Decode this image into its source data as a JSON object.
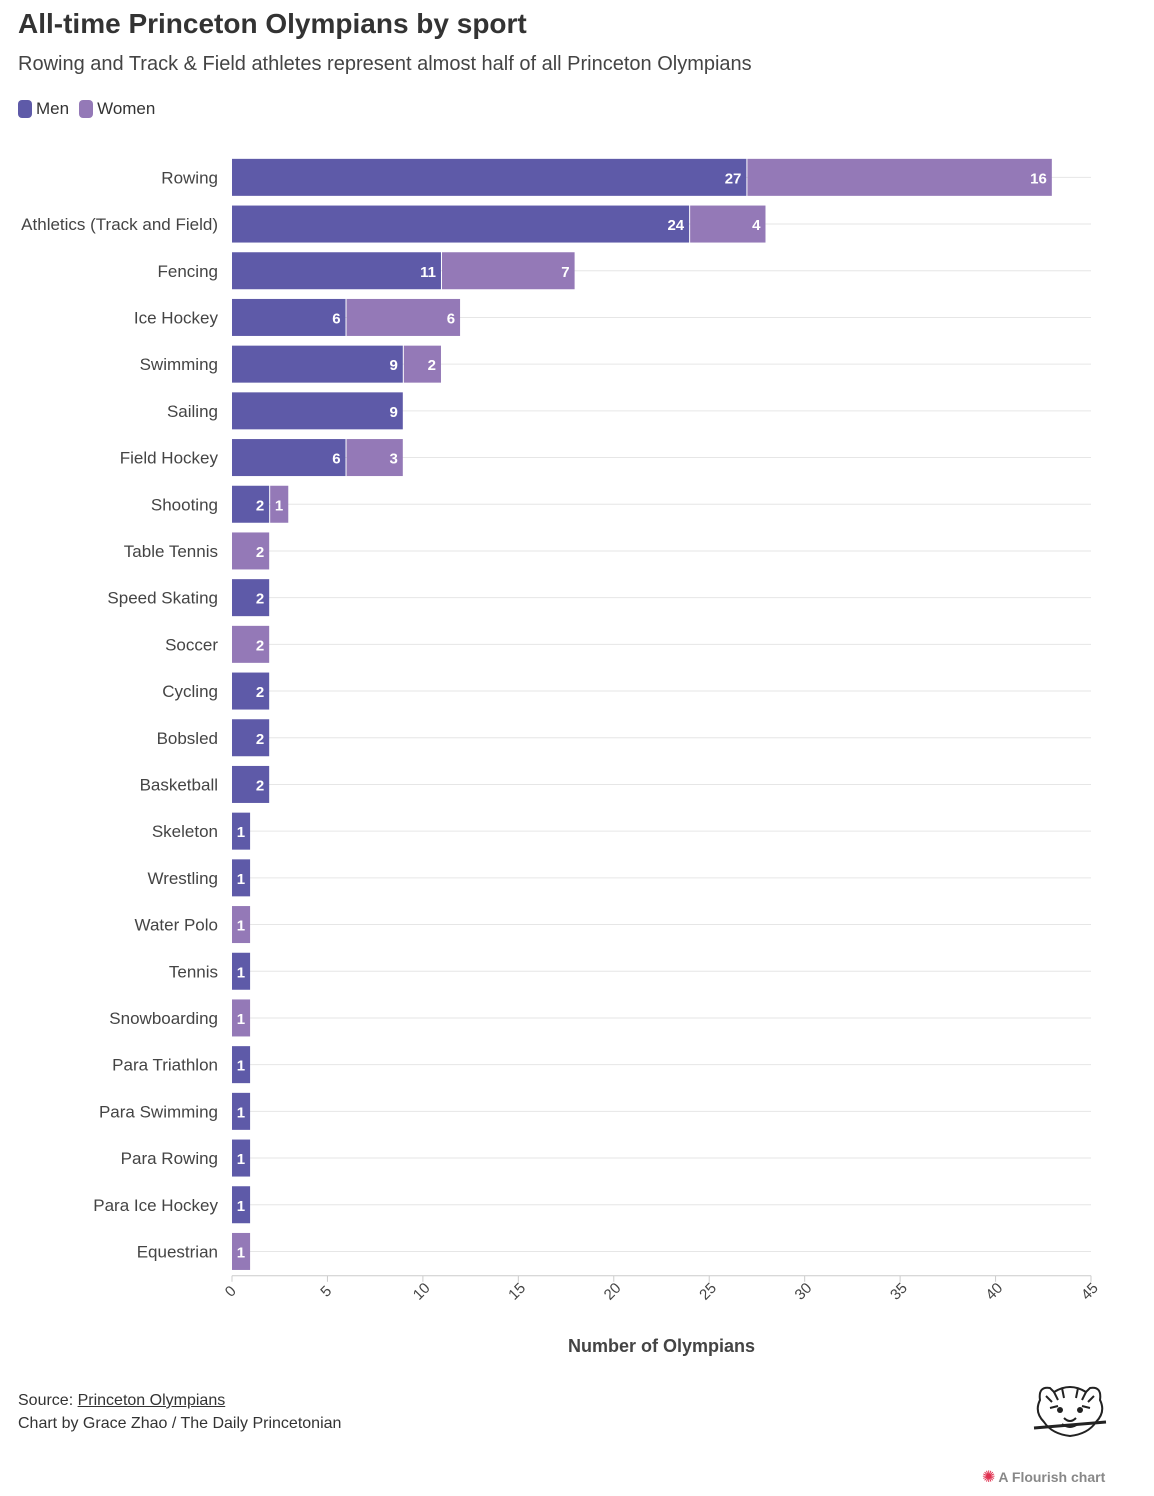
{
  "header": {
    "title": "All-time Princeton Olympians by sport",
    "subtitle": "Rowing and Track & Field athletes represent almost half of all Princeton Olympians"
  },
  "legend": {
    "men_label": "Men",
    "women_label": "Women"
  },
  "colors": {
    "men": "#5e5aa8",
    "women": "#9479b7",
    "grid": "#e6e6e6",
    "axis": "#cccccc",
    "text": "#333333"
  },
  "chart_data": {
    "type": "bar",
    "orientation": "horizontal",
    "stacked": true,
    "title": "All-time Princeton Olympians by sport",
    "xlabel": "Number of Olympians",
    "ylabel": "",
    "xlim": [
      0,
      45
    ],
    "xticks": [
      0,
      5,
      10,
      15,
      20,
      25,
      30,
      35,
      40,
      45
    ],
    "grid": true,
    "legend_position": "top-left",
    "categories": [
      "Rowing",
      "Athletics (Track and Field)",
      "Fencing",
      "Ice Hockey",
      "Swimming",
      "Sailing",
      "Field Hockey",
      "Shooting",
      "Table Tennis",
      "Speed Skating",
      "Soccer",
      "Cycling",
      "Bobsled",
      "Basketball",
      "Skeleton",
      "Wrestling",
      "Water Polo",
      "Tennis",
      "Snowboarding",
      "Para Triathlon",
      "Para Swimming",
      "Para Rowing",
      "Para Ice Hockey",
      "Equestrian"
    ],
    "series": [
      {
        "name": "Men",
        "values": [
          27,
          24,
          11,
          6,
          9,
          9,
          6,
          2,
          0,
          2,
          0,
          2,
          2,
          2,
          1,
          1,
          0,
          1,
          0,
          1,
          1,
          1,
          1,
          0
        ]
      },
      {
        "name": "Women",
        "values": [
          16,
          4,
          7,
          6,
          2,
          0,
          3,
          1,
          2,
          0,
          2,
          0,
          0,
          0,
          0,
          0,
          1,
          0,
          1,
          0,
          0,
          0,
          0,
          1
        ]
      }
    ]
  },
  "footer": {
    "source_prefix": "Source: ",
    "source_link": "Princeton Olympians",
    "credit": "Chart by Grace Zhao / The Daily Princetonian",
    "flourish": "A Flourish chart"
  }
}
